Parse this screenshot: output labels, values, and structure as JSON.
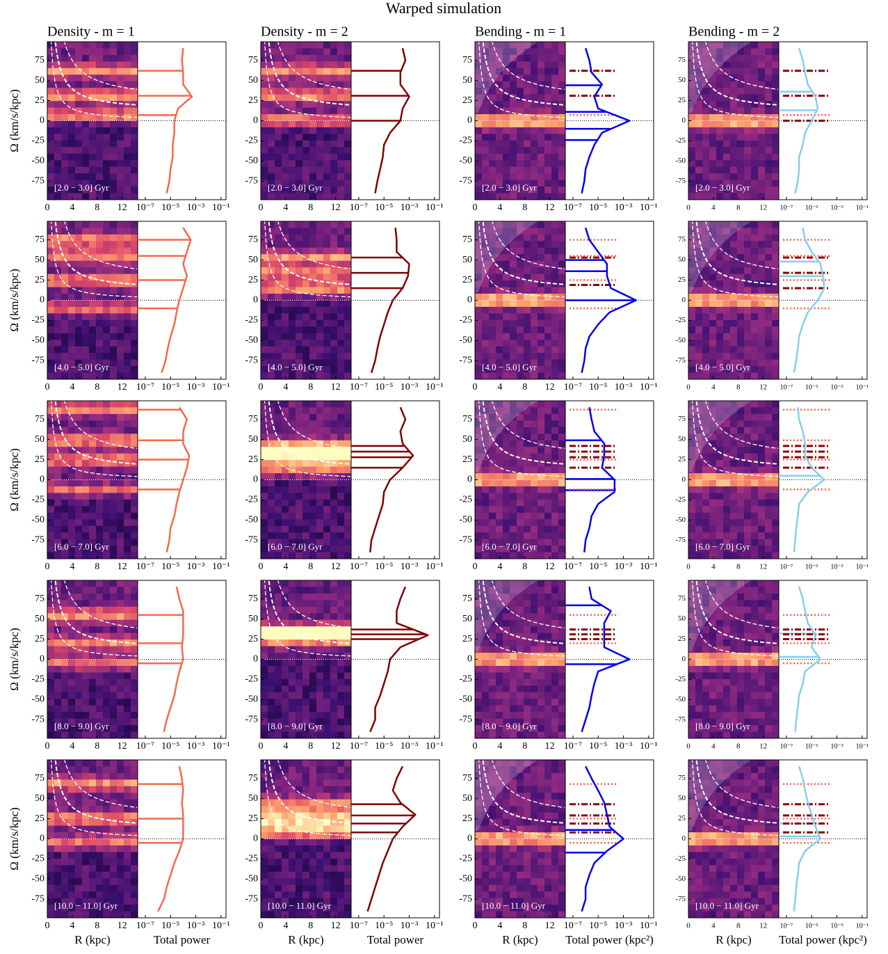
{
  "chart_data": {
    "type": "spectrogram-grid",
    "title": "Warped simulation",
    "ylabel": "Ω (km/s/kpc)",
    "ylim": [
      -98,
      98
    ],
    "yticks": [
      -75,
      -50,
      -25,
      0,
      25,
      50,
      75
    ],
    "xlabel": "R (kpc)",
    "xlim": [
      0,
      14.5
    ],
    "xticks": [
      0,
      4,
      8,
      12
    ],
    "power_lim": [
      2.5e-08,
      0.25
    ],
    "power_log": true,
    "power_ticks": [
      {
        "value": 1e-07,
        "label": "10⁻⁷"
      },
      {
        "value": 1e-05,
        "label": "10⁻⁵"
      },
      {
        "value": 0.001,
        "label": "10⁻³"
      },
      {
        "value": 0.1,
        "label": "10⁻¹"
      }
    ],
    "omega": [
      -90,
      -75,
      -60,
      -45,
      -30,
      -15,
      0,
      15,
      30,
      45,
      60,
      75,
      90
    ],
    "rows": [
      "[2.0 − 3.0] Gyr",
      "[4.0 − 5.0] Gyr",
      "[6.0 − 7.0] Gyr",
      "[8.0 − 9.0] Gyr",
      "[10.0 − 11.0] Gyr"
    ],
    "dashdot_color": "#8b0000",
    "dotted_color": "#ff6347",
    "columns": [
      {
        "title": "Density - m = 1",
        "color": "#f4694b",
        "power_label": "Total power",
        "panels": [
          {
            "values": [
              5e-06,
              8e-06,
              1e-05,
              1.5e-05,
              1.5e-05,
              2e-05,
              2e-05,
              4e-05,
              0.0005,
              0.0001,
              0.0001,
              8e-05,
              0.0001
            ],
            "peaks": [
              62,
              31,
              7
            ]
          },
          {
            "values": [
              2e-06,
              4e-06,
              6e-06,
              1e-05,
              2e-05,
              3e-05,
              5e-05,
              0.0001,
              0.0002,
              0.0001,
              0.0002,
              0.0004,
              0.0001
            ],
            "peaks": [
              75,
              55,
              25,
              -10
            ]
          },
          {
            "values": [
              5e-06,
              8e-06,
              1e-05,
              2e-05,
              3e-05,
              5e-05,
              0.0001,
              0.0002,
              0.0003,
              0.0001,
              0.0001,
              0.0002,
              5e-05
            ],
            "peaks": [
              87,
              49,
              25,
              -12
            ]
          },
          {
            "values": [
              3e-06,
              5e-06,
              1e-05,
              2e-05,
              3e-05,
              5e-05,
              0.0001,
              8e-05,
              0.0001,
              0.0001,
              0.0001,
              5e-05,
              3e-05
            ],
            "peaks": [
              55,
              20,
              -5
            ]
          },
          {
            "values": [
              1e-06,
              3e-06,
              5e-06,
              1e-05,
              2e-05,
              5e-05,
              0.0001,
              0.0001,
              0.0001,
              8e-05,
              0.0001,
              8e-05,
              5e-05
            ],
            "peaks": [
              68,
              25,
              -5
            ]
          }
        ]
      },
      {
        "title": "Density - m = 2",
        "color": "#7f0000",
        "power_label": "Total power",
        "panels": [
          {
            "values": [
              2e-06,
              3e-06,
              5e-06,
              8e-06,
              1e-05,
              3e-05,
              0.0002,
              0.0003,
              0.001,
              0.0002,
              0.0002,
              0.0005,
              0.0003
            ],
            "peaks": [
              62,
              31,
              0
            ]
          },
          {
            "values": [
              1e-06,
              2e-06,
              3e-06,
              5e-06,
              1e-05,
              2e-05,
              5e-05,
              0.0003,
              0.0008,
              0.001,
              0.0001,
              0.0001,
              8e-05
            ],
            "peaks": [
              53,
              34,
              15
            ]
          },
          {
            "values": [
              8e-07,
              1e-06,
              2e-06,
              4e-06,
              8e-06,
              1e-05,
              3e-05,
              0.0003,
              0.002,
              0.0003,
              0.0002,
              0.0005,
              0.0002
            ],
            "peaks": [
              42,
              35,
              28,
              15
            ]
          },
          {
            "values": [
              8e-07,
              2e-06,
              2e-06,
              5e-06,
              1e-05,
              2e-05,
              3e-05,
              0.0002,
              0.03,
              0.0001,
              0.0001,
              0.0002,
              0.0005
            ],
            "peaks": [
              37,
              31,
              25
            ]
          },
          {
            "values": [
              5e-07,
              1e-06,
              2e-06,
              4e-06,
              8e-06,
              2e-05,
              5e-05,
              0.0003,
              0.003,
              0.0002,
              5e-05,
              0.0001,
              0.0003
            ],
            "peaks": [
              43,
              29,
              19,
              8
            ]
          }
        ]
      },
      {
        "title": "Bending - m = 1",
        "color": "#0000ee",
        "power_label": "Total power (kpc²)",
        "panels": [
          {
            "values": [
              5e-07,
              8e-07,
              1e-06,
              2e-06,
              5e-06,
              2e-05,
              0.003,
              1e-05,
              5e-06,
              2e-05,
              3e-06,
              2e-06,
              1e-06
            ],
            "peaks": [
              44,
              11,
              -10,
              -24
            ],
            "peaks_dashdot": [
              62,
              31
            ],
            "peaks_dotted": [
              7
            ]
          },
          {
            "values": [
              5e-07,
              8e-07,
              1e-06,
              2e-06,
              1e-05,
              8e-05,
              0.01,
              0.0001,
              5e-05,
              5e-05,
              1e-05,
              2e-06,
              1e-06
            ],
            "peaks": [
              50,
              36,
              0
            ],
            "peaks_dashdot": [
              53,
              19
            ],
            "peaks_dotted": [
              75,
              55,
              25,
              -10
            ]
          },
          {
            "values": [
              8e-07,
              1e-06,
              2e-06,
              3e-06,
              1e-05,
              0.0002,
              0.0002,
              2e-05,
              3e-05,
              3e-05,
              5e-06,
              3e-06,
              2e-06
            ],
            "peaks": [
              49,
              1,
              -13
            ],
            "peaks_dashdot": [
              42,
              35,
              28,
              15
            ],
            "peaks_dotted": [
              87,
              25,
              -12
            ]
          },
          {
            "values": [
              5e-07,
              1e-06,
              2e-06,
              3e-06,
              5e-06,
              1e-05,
              0.003,
              3e-05,
              3e-05,
              3e-05,
              0.0001,
              3e-06,
              2e-06
            ],
            "peaks": [
              67,
              -6
            ],
            "peaks_dashdot": [
              37,
              31,
              25
            ],
            "peaks_dotted": [
              55,
              20
            ]
          },
          {
            "values": [
              5e-07,
              1e-06,
              1e-06,
              2e-06,
              5e-06,
              5e-05,
              0.001,
              8e-05,
              5e-05,
              3e-05,
              1e-05,
              3e-06,
              1e-06
            ],
            "peaks": [
              11,
              -17
            ],
            "peaks_dashdot": [
              43,
              29,
              19,
              8
            ],
            "peaks_dotted": [
              68,
              25,
              -5
            ]
          }
        ]
      },
      {
        "title": "Bending - m = 2",
        "color": "#87ceeb",
        "power_label": "Total power (kpc²)",
        "panels": [
          {
            "values": [
              5e-07,
              8e-07,
              1e-06,
              1e-06,
              2e-06,
              3e-06,
              1e-05,
              3e-05,
              2e-05,
              5e-06,
              3e-06,
              2e-06,
              1e-06
            ],
            "peaks": [
              36,
              13
            ],
            "peaks_dashdot": [
              62,
              31,
              0
            ],
            "peaks_dotted": [
              7
            ]
          },
          {
            "values": [
              4e-07,
              6e-07,
              8e-07,
              1e-06,
              2e-06,
              5e-06,
              3e-05,
              0.0001,
              8e-05,
              5e-05,
              1e-05,
              3e-06,
              2e-06
            ],
            "peaks": [
              48,
              30
            ],
            "peaks_dashdot": [
              53,
              34,
              15
            ],
            "peaks_dotted": [
              75,
              55,
              25,
              -10
            ]
          },
          {
            "values": [
              4e-07,
              5e-07,
              6e-07,
              8e-07,
              1e-06,
              5e-06,
              0.0001,
              1e-05,
              3e-06,
              3e-06,
              2e-06,
              1e-06,
              8e-07
            ],
            "peaks": [
              5
            ],
            "peaks_dashdot": [
              42,
              35,
              28,
              15
            ],
            "peaks_dotted": [
              87,
              49,
              25,
              -12
            ]
          },
          {
            "values": [
              5e-07,
              6e-07,
              8e-07,
              1e-06,
              2e-06,
              3e-06,
              5e-05,
              1e-05,
              2e-05,
              5e-06,
              3e-06,
              2e-06,
              1e-06
            ],
            "peaks": [
              32,
              3
            ],
            "peaks_dashdot": [
              37,
              31,
              25
            ],
            "peaks_dotted": [
              55,
              20,
              -5
            ]
          },
          {
            "values": [
              4e-07,
              5e-07,
              6e-07,
              8e-07,
              1e-06,
              3e-06,
              5e-05,
              2e-05,
              1e-05,
              5e-06,
              3e-06,
              2e-06,
              1e-06
            ],
            "peaks": [
              19,
              3
            ],
            "peaks_dashdot": [
              43,
              29,
              19,
              8
            ],
            "peaks_dotted": [
              68,
              25,
              -5
            ]
          }
        ]
      }
    ]
  }
}
